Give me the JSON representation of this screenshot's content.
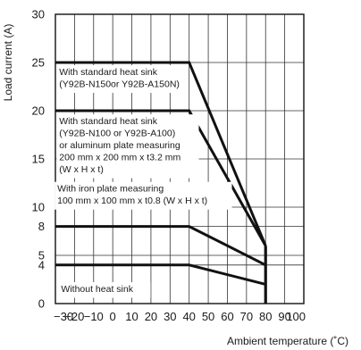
{
  "chart_data": {
    "type": "line",
    "xlabel": "Ambient temperature (˚C)",
    "ylabel": "Load current (A)",
    "xlim": [
      -30,
      100
    ],
    "ylim": [
      0,
      30
    ],
    "x_ticks": [
      -30,
      -20,
      -10,
      0,
      10,
      20,
      30,
      40,
      50,
      60,
      70,
      80,
      90,
      100
    ],
    "x_tick_labels": [
      "−30",
      "−20",
      "−10",
      "0",
      "10",
      "20",
      "30",
      "40",
      "50",
      "60",
      "70",
      "80",
      "90",
      "100"
    ],
    "y_ticks": [
      0,
      4,
      5,
      8,
      10,
      15,
      20,
      25,
      30
    ],
    "grid": true,
    "series": [
      {
        "points": [
          [
            -30,
            25
          ],
          [
            40,
            25
          ],
          [
            80,
            6
          ]
        ]
      },
      {
        "points": [
          [
            -30,
            20
          ],
          [
            40,
            20
          ],
          [
            80,
            6
          ]
        ]
      },
      {
        "points": [
          [
            -30,
            8
          ],
          [
            40,
            8
          ],
          [
            80,
            4
          ]
        ]
      },
      {
        "points": [
          [
            -30,
            4
          ],
          [
            40,
            4
          ],
          [
            80,
            2
          ]
        ]
      }
    ],
    "cutoff": {
      "x": 80,
      "y_range": [
        0,
        6
      ]
    },
    "annotations": [
      {
        "lines": [
          "With standard heat sink",
          "(Y92B-N150or Y92B-A150N)"
        ],
        "x": -28,
        "y": 23.7
      },
      {
        "lines": [
          "With standard heat sink",
          "(Y92B-N100 or  Y92B-A100)",
          "or aluminum plate measuring",
          "200 mm x 200 mm x t3.2 mm",
          "(W x H x t)"
        ],
        "x": -28,
        "y": 18.6
      },
      {
        "lines": [
          "With iron plate measuring",
          "100 mm x 100 mm x t0.8 (W x H x t)"
        ],
        "x": -29,
        "y": 11.6
      },
      {
        "lines": [
          "Without heat sink"
        ],
        "x": -27,
        "y": 1.2
      }
    ]
  }
}
